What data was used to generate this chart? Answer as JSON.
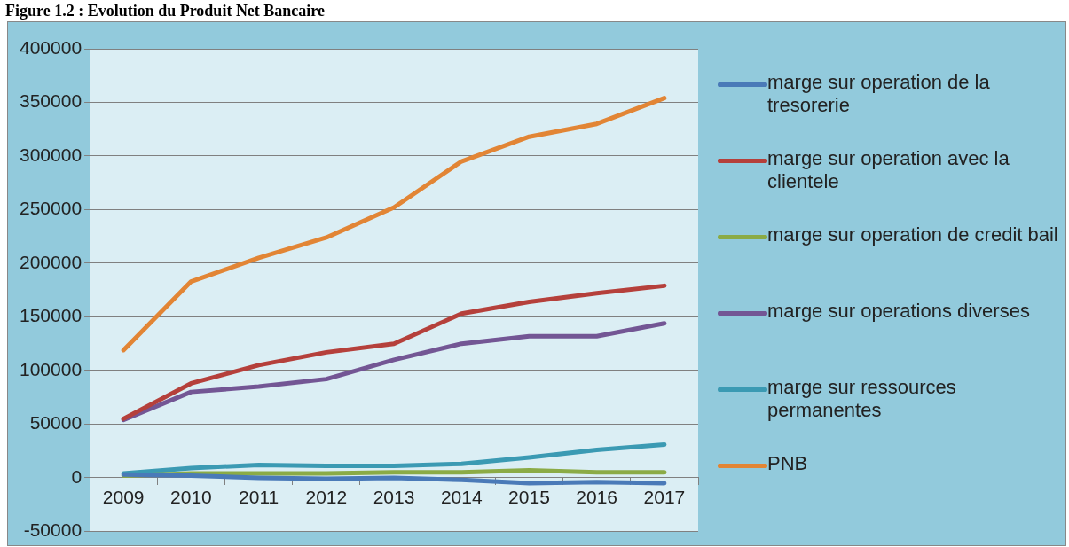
{
  "chart_data": {
    "type": "line",
    "title": "Figure 1.2 : Evolution du Produit Net Bancaire",
    "categories": [
      "2009",
      "2010",
      "2011",
      "2012",
      "2013",
      "2014",
      "2015",
      "2016",
      "2017"
    ],
    "series": [
      {
        "name": "marge sur operation de la tresorerie",
        "color": "#4a7ab8",
        "values": [
          3000,
          2000,
          0,
          -1000,
          0,
          -2000,
          -5000,
          -4000,
          -5000
        ]
      },
      {
        "name": "marge sur operation avec la clientele",
        "color": "#b5403b",
        "values": [
          55000,
          88000,
          105000,
          117000,
          125000,
          153000,
          164000,
          172000,
          179000
        ]
      },
      {
        "name": "marge sur operation de credit bail",
        "color": "#8bab46",
        "values": [
          2000,
          4000,
          4000,
          4000,
          5000,
          5000,
          7000,
          5000,
          5000
        ]
      },
      {
        "name": "marge sur operations diverses",
        "color": "#735694",
        "values": [
          54000,
          80000,
          85000,
          92000,
          110000,
          125000,
          132000,
          132000,
          144000
        ]
      },
      {
        "name": "marge sur ressources permanentes",
        "color": "#3b9ab3",
        "values": [
          4000,
          9000,
          12000,
          11000,
          11000,
          13000,
          19000,
          26000,
          31000
        ]
      },
      {
        "name": "PNB",
        "color": "#e28535",
        "values": [
          119000,
          183000,
          205000,
          224000,
          252000,
          295000,
          318000,
          330000,
          354000
        ]
      }
    ],
    "ylim": [
      -50000,
      400000
    ],
    "yticks": [
      -50000,
      0,
      50000,
      100000,
      150000,
      200000,
      250000,
      300000,
      350000,
      400000
    ],
    "grid": "y",
    "legend": "right",
    "marker": "none"
  }
}
